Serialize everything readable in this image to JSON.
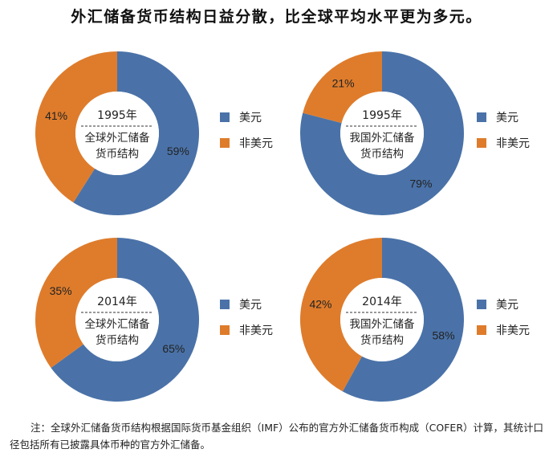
{
  "title": "外汇储备货币结构日益分散，比全球平均水平更为多元。",
  "colors": {
    "usd": "#4A72A8",
    "non_usd": "#DE7C2C"
  },
  "legend": [
    "美元",
    "非美元"
  ],
  "chart_data": [
    {
      "type": "pie",
      "year": "1995年",
      "label_line1": "全球外汇储备",
      "label_line2": "货币结构",
      "slices": [
        {
          "name": "美元",
          "value": 59,
          "label": "59%"
        },
        {
          "name": "非美元",
          "value": 41,
          "label": "41%"
        }
      ]
    },
    {
      "type": "pie",
      "year": "1995年",
      "label_line1": "我国外汇储备",
      "label_line2": "货币结构",
      "slices": [
        {
          "name": "美元",
          "value": 79,
          "label": "79%"
        },
        {
          "name": "非美元",
          "value": 21,
          "label": "21%"
        }
      ]
    },
    {
      "type": "pie",
      "year": "2014年",
      "label_line1": "全球外汇储备",
      "label_line2": "货币结构",
      "slices": [
        {
          "name": "美元",
          "value": 65,
          "label": "65%"
        },
        {
          "name": "非美元",
          "value": 35,
          "label": "35%"
        }
      ]
    },
    {
      "type": "pie",
      "year": "2014年",
      "label_line1": "我国外汇储备",
      "label_line2": "货币结构",
      "slices": [
        {
          "name": "美元",
          "value": 58,
          "label": "58%"
        },
        {
          "name": "非美元",
          "value": 42,
          "label": "42%"
        }
      ]
    }
  ],
  "note": "注：全球外汇储备货币结构根据国际货币基金组织（IMF）公布的官方外汇储备货币构成（COFER）计算，其统计口径包括所有已披露具体币种的官方外汇储备。"
}
